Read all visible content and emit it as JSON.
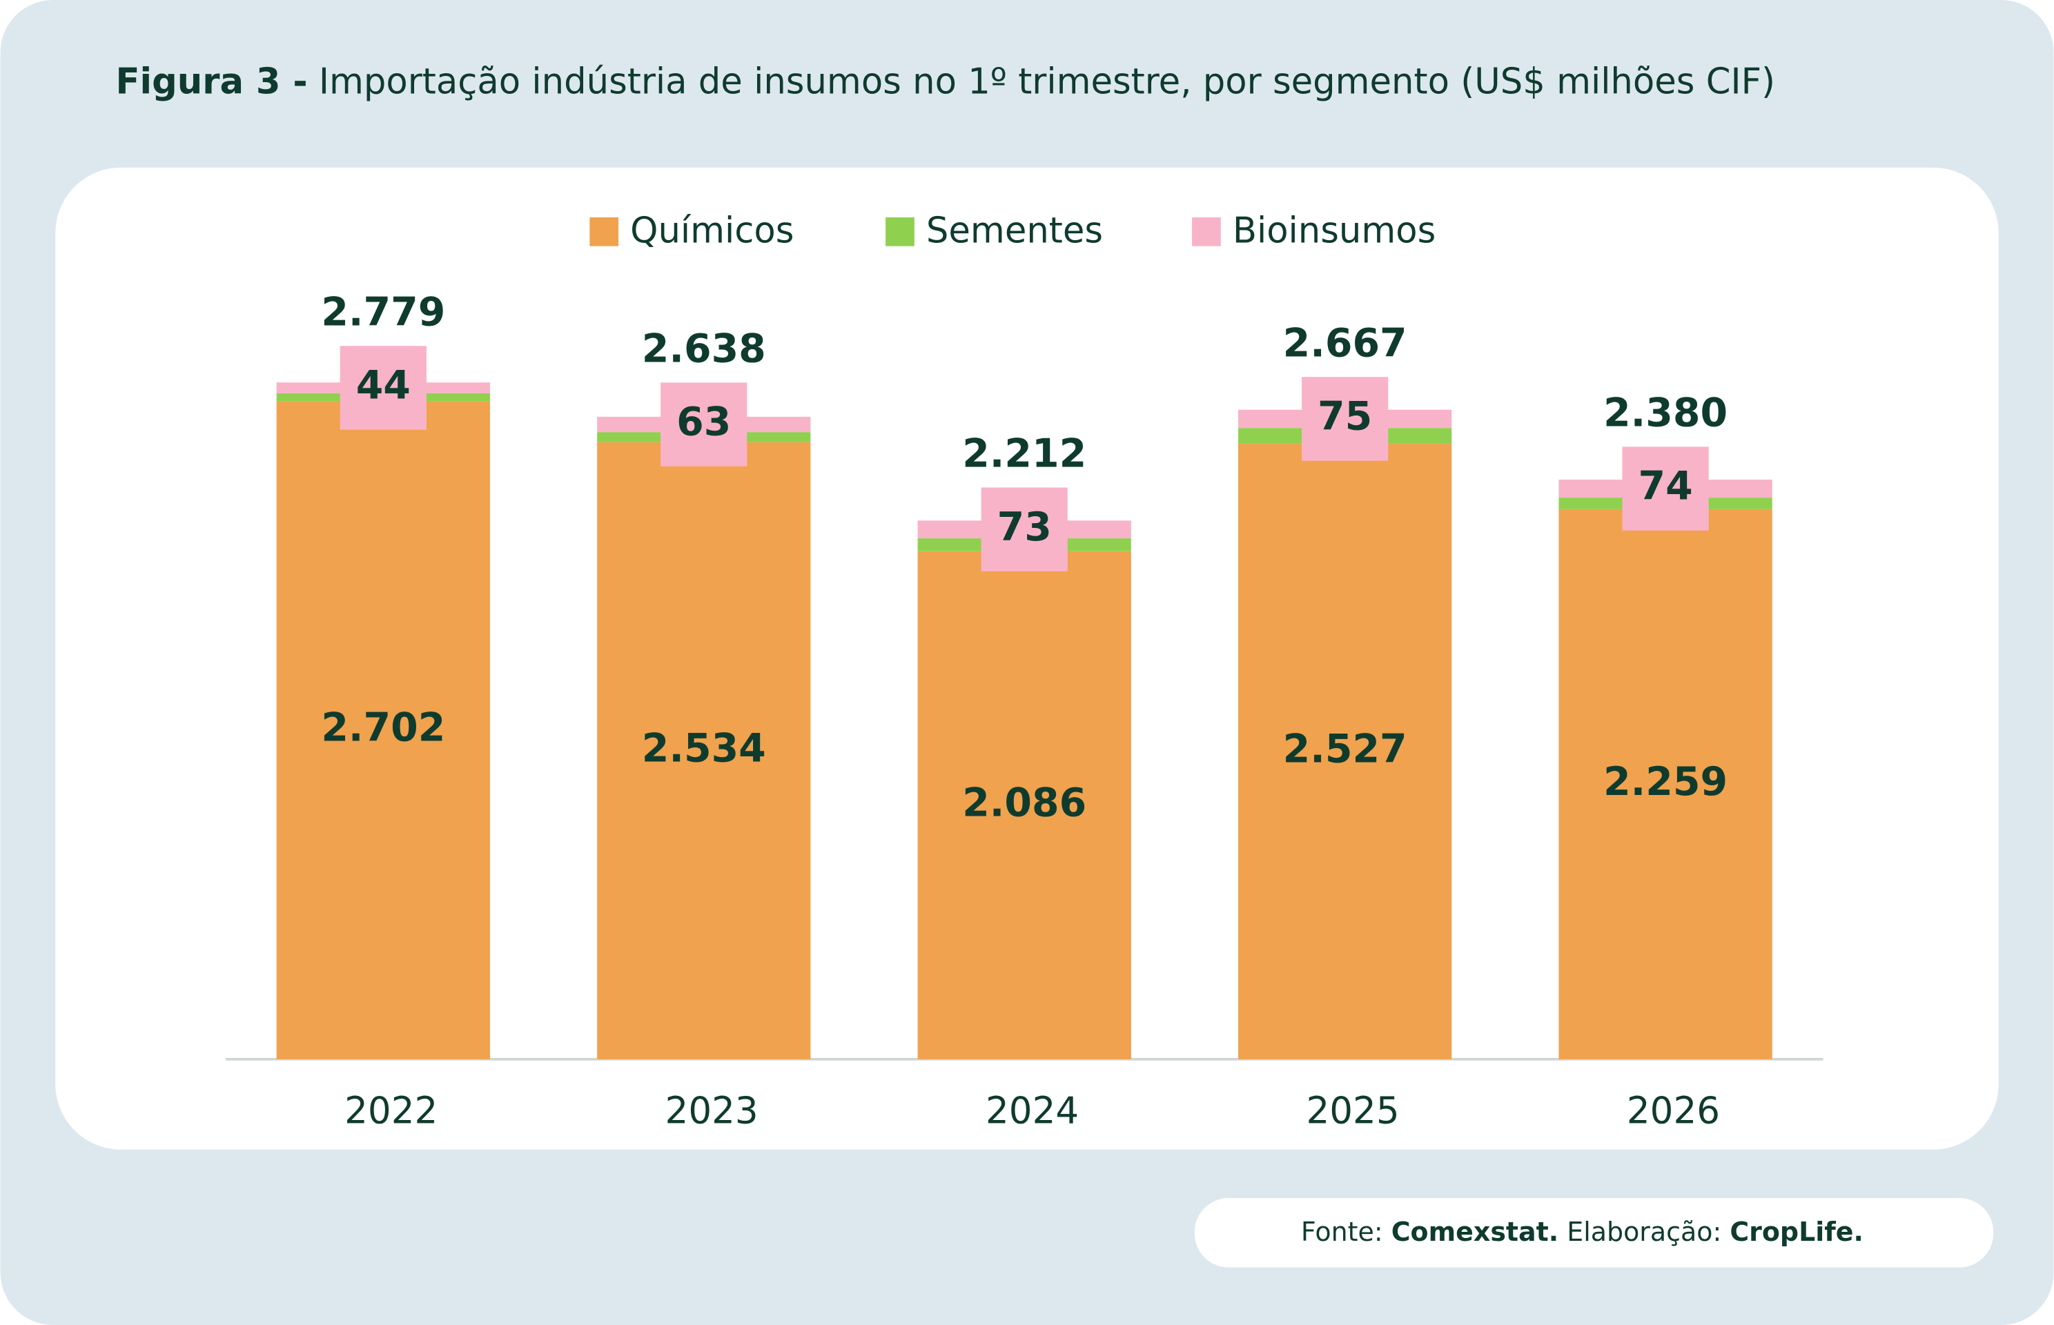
{
  "chart_data": {
    "type": "stacked_bar",
    "title_prefix": "Figura 3 -",
    "title": "Importação indústria de insumos no 1º trimestre, por segmento (US$ milhões CIF)",
    "categories": [
      "2022",
      "2023",
      "2024",
      "2025",
      "2026"
    ],
    "series": [
      {
        "name": "Químicos",
        "color": "#f0a24e",
        "values": [
          2702,
          2534,
          2086,
          2527,
          2259
        ],
        "value_labels": [
          "2.702",
          "2.534",
          "2.086",
          "2.527",
          "2.259"
        ]
      },
      {
        "name": "Sementes",
        "color": "#8fd14f",
        "values": [
          33,
          41,
          53,
          65,
          47
        ]
      },
      {
        "name": "Bioinsumos",
        "color": "#f9b3c9",
        "values": [
          44,
          63,
          73,
          75,
          74
        ]
      }
    ],
    "totals": {
      "values": [
        2779,
        2638,
        2212,
        2667,
        2380
      ],
      "value_labels": [
        "2.779",
        "2.638",
        "2.212",
        "2.667",
        "2.380"
      ]
    },
    "ylim": [
      0,
      3000
    ],
    "legend": "top",
    "footer": {
      "source_label": "Fonte:",
      "source": "Comexstat.",
      "credit_label": "Elaboração:",
      "credit": "CropLife."
    }
  }
}
